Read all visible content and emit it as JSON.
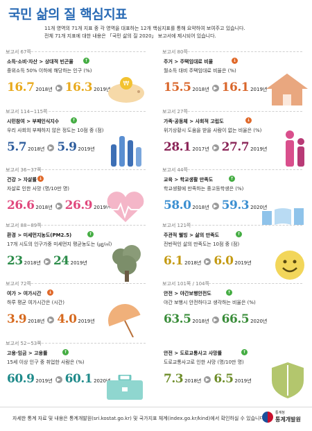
{
  "header": {
    "title": "국민 삶의 질 핵심지표",
    "intro_line1": "11개 영역의 71개 지표 중 각 영역을 대표하는 12개 핵심지표를 통해 요약하여 보여주고 있습니다.",
    "intro_line2": "전체 71개 지표에 대한 내용은 「국민 삶의 질 2020」 보고서에 제시되어 있습니다."
  },
  "colors": {
    "title": "#2a6bb5",
    "improve": "#45ad43",
    "worsen": "#e0692a"
  },
  "cards": [
    {
      "ref": "보고서 67쪽",
      "category": "소득·소비·자산 > 상대적 빈곤율",
      "trend": "up",
      "desc": "중위소득 50% 이하에 해당하는 인구 (%)",
      "v1": "16.7",
      "y1": "2018년",
      "v2": "16.3",
      "y2": "2019년",
      "color": "#e8a91c",
      "icon": "piggy-bank-icon"
    },
    {
      "ref": "보고서 80쪽",
      "category": "주거 > 주택임대료 비율",
      "trend": "down",
      "desc": "월소득 대비 주택임대료 비율은 (%)",
      "v1": "15.5",
      "y1": "2018년",
      "v2": "16.1",
      "y2": "2019년",
      "color": "#d9662b",
      "icon": "house-icon"
    },
    {
      "ref": "보고서 114~115쪽",
      "category": "시민참여 > 부패인식지수",
      "trend": "up",
      "desc": "우리 사회의 부패하지 않은 정도는 10점 중 (점)",
      "v1": "5.7",
      "y1": "2018년",
      "v2": "5.9",
      "y2": "2019년",
      "color": "#2d5c9c",
      "icon": "raised-hands-icon"
    },
    {
      "ref": "보고서 27쪽",
      "category": "가족·공동체 > 사회적 고립도",
      "trend": "down",
      "desc": "위기상황시 도움을 받을 사람이 없는 비율은 (%)",
      "v1": "28.1",
      "y1": "2017년",
      "v2": "27.7",
      "y2": "2019년",
      "color": "#8a2457",
      "icon": "family-icon"
    },
    {
      "ref": "보고서 36~37쪽",
      "category": "건강 > 자살률",
      "trend": "down",
      "desc": "자살로 인한 사망 (명/10만 명)",
      "v1": "26.6",
      "y1": "2018년",
      "v2": "26.9",
      "y2": "2019년",
      "color": "#e0487d",
      "icon": "heartbeat-icon"
    },
    {
      "ref": "보고서 44쪽",
      "category": "교육 > 학교생활 만족도",
      "trend": "up",
      "desc": "학교생활에 만족하는 중고등학생은 (%)",
      "v1": "58.0",
      "y1": "2018년",
      "v2": "59.3",
      "y2": "2020년",
      "color": "#3b8fd1",
      "icon": "books-icon"
    },
    {
      "ref": "보고서 88~89쪽",
      "category": "환경 > 미세먼지농도(PM2.5)",
      "trend": "up",
      "desc": "17개 시도의 인구가중 미세먼지 평균농도는 (㎍/㎥)",
      "v1": "23",
      "y1": "2018년",
      "v2": "24",
      "y2": "2019년",
      "color": "#2c8c4a",
      "icon": "tree-icon"
    },
    {
      "ref": "보고서 121쪽",
      "category": "주관적 웰빙 > 삶의 만족도",
      "trend": "up",
      "desc": "전반적인 삶의 만족도는 10점 중 (점)",
      "v1": "6.1",
      "y1": "2018년",
      "v2": "6.0",
      "y2": "2019년",
      "color": "#c49a12",
      "icon": "smiley-icon"
    },
    {
      "ref": "보고서 72쪽",
      "category": "여가 > 여가시간",
      "trend": "down",
      "desc": "하루 평균 여가시간은 (시간)",
      "v1": "3.9",
      "y1": "2018년",
      "v2": "4.0",
      "y2": "2019년",
      "color": "#d6691e",
      "icon": "umbrella-icon"
    },
    {
      "ref": "보고서 101쪽 / 104쪽",
      "category": "안전 > 야간보행안전도",
      "trend": "up",
      "desc": "야간 보행시 안전하다고 생각하는 비율은 (%)",
      "v1": "63.5",
      "y1": "2018년",
      "v2": "66.5",
      "y2": "2020년",
      "color": "#3a8d3a",
      "icon": "night-walk-icon"
    },
    {
      "ref": "보고서 52~53쪽",
      "category": "고용·임금 > 고용률",
      "trend": "up",
      "desc": "15세 이상 인구 중 취업한 사람은 (%)",
      "v1": "60.9",
      "y1": "2019년",
      "v2": "60.1",
      "y2": "2020년",
      "color": "#1f8a8a",
      "icon": "briefcase-icon"
    },
    {
      "ref": "",
      "category": "안전 > 도로교통사고 사망률",
      "trend": "up",
      "desc": "도로교통사고로 인한 사망 (명/10만 명)",
      "v1": "7.3",
      "y1": "2018년",
      "v2": "6.5",
      "y2": "2019년",
      "color": "#6e8d2a",
      "icon": "shield-icon"
    }
  ],
  "footer": {
    "text": "자세한 통계 자료 및 내용은 통계개발원(sri.kostat.go.kr) 및 국가지표 체계(index.go.kr/kind)에서 확인하실 수 있습니다.",
    "logo_small": "통계청",
    "logo_name": "통계개발원"
  }
}
